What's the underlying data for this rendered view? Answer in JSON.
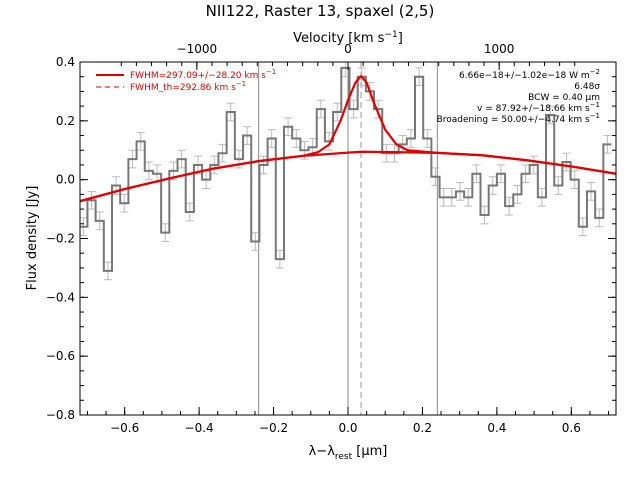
{
  "chart_data": {
    "type": "line",
    "title": "NII122, Raster 13, spaxel (2,5)",
    "xlabel": "λ−λ",
    "xlabel_sub": "rest",
    "xlabel_unit": " [μm]",
    "ylabel": "Flux density [Jy]",
    "top_axis_label": "Velocity [km s",
    "top_axis_label_sup": "−1",
    "top_axis_label_end": "]",
    "xlim": [
      -0.72,
      0.72
    ],
    "ylim": [
      -0.8,
      0.4
    ],
    "top_xlim": [
      -1773,
      1773
    ],
    "x_ticks": [
      -0.6,
      -0.4,
      -0.2,
      0.0,
      0.2,
      0.4,
      0.6
    ],
    "x_tick_labels": [
      "−0.6",
      "−0.4",
      "−0.2",
      "0.0",
      "0.2",
      "0.4",
      "0.6"
    ],
    "y_ticks": [
      -0.8,
      -0.6,
      -0.4,
      -0.2,
      0.0,
      0.2,
      0.4
    ],
    "y_tick_labels": [
      "−0.8",
      "−0.6",
      "−0.4",
      "−0.2",
      "0.0",
      "0.2",
      "0.4"
    ],
    "top_ticks": [
      -1000,
      0,
      1000
    ],
    "top_tick_labels": [
      "−1000",
      "0",
      "1000"
    ],
    "vertical_lines": [
      -0.24,
      0.0,
      0.24
    ],
    "dashed_line_x": 0.035,
    "legend": [
      {
        "label": "FWHM=297.09+/−28.20 km s",
        "sup": "−1",
        "style": "solid",
        "color": "#e00000"
      },
      {
        "label": "FWHM_th=292.86 km s",
        "sup": "−1",
        "style": "dashed",
        "color": "#e00000"
      }
    ],
    "annotations": [
      {
        "text": "6.66e−18+/−1.02e−18 W m",
        "sup": "−2"
      },
      {
        "text": "6.48σ",
        "sup": ""
      },
      {
        "text": "BCW = 0.40 μm",
        "sup": ""
      },
      {
        "text": "v = 87.92+/−18.66 km s",
        "sup": "−1"
      },
      {
        "text": "Broadening = 50.00+/−4.74 km s",
        "sup": "−1"
      }
    ],
    "series": [
      {
        "style": "histogram",
        "color": "#777777",
        "x": [
          -0.711,
          -0.689,
          -0.667,
          -0.645,
          -0.623,
          -0.601,
          -0.579,
          -0.557,
          -0.535,
          -0.513,
          -0.491,
          -0.469,
          -0.447,
          -0.425,
          -0.403,
          -0.381,
          -0.359,
          -0.337,
          -0.315,
          -0.293,
          -0.271,
          -0.249,
          -0.227,
          -0.205,
          -0.183,
          -0.161,
          -0.139,
          -0.117,
          -0.095,
          -0.073,
          -0.051,
          -0.029,
          -0.007,
          0.015,
          0.037,
          0.059,
          0.081,
          0.103,
          0.125,
          0.147,
          0.169,
          0.191,
          0.213,
          0.235,
          0.257,
          0.279,
          0.301,
          0.323,
          0.345,
          0.367,
          0.389,
          0.411,
          0.433,
          0.455,
          0.477,
          0.499,
          0.521,
          0.543,
          0.565,
          0.587,
          0.609,
          0.631,
          0.653,
          0.675,
          0.697
        ],
        "y": [
          -0.16,
          -0.07,
          -0.14,
          -0.31,
          -0.02,
          -0.08,
          0.07,
          0.13,
          0.03,
          0.02,
          -0.18,
          0.03,
          0.07,
          -0.11,
          0.05,
          0.0,
          0.05,
          0.09,
          0.23,
          0.07,
          0.15,
          -0.21,
          0.05,
          0.14,
          -0.27,
          0.18,
          0.14,
          0.1,
          0.11,
          0.24,
          0.13,
          0.23,
          0.38,
          0.24,
          0.35,
          0.3,
          0.24,
          0.09,
          0.09,
          0.12,
          0.14,
          0.35,
          0.14,
          0.01,
          -0.06,
          -0.06,
          -0.04,
          -0.06,
          0.02,
          -0.12,
          -0.02,
          0.02,
          -0.09,
          -0.05,
          0.02,
          0.05,
          -0.06,
          0.22,
          -0.02,
          0.06,
          0.0,
          -0.16,
          -0.04,
          -0.13,
          0.12
        ],
        "error": 0.03
      },
      {
        "style": "line",
        "color": "#e00000",
        "x": [
          -0.72,
          -0.6,
          -0.48,
          -0.36,
          -0.24,
          -0.12,
          0.0,
          0.035,
          0.1,
          0.24,
          0.36,
          0.48,
          0.6,
          0.72
        ],
        "y": [
          -0.073,
          -0.032,
          0.004,
          0.038,
          0.063,
          0.081,
          0.092,
          0.095,
          0.094,
          0.091,
          0.083,
          0.066,
          0.045,
          0.02
        ]
      },
      {
        "style": "line",
        "color": "#e00000",
        "x": [
          -0.72,
          -0.6,
          -0.48,
          -0.36,
          -0.24,
          -0.12,
          -0.08,
          -0.05,
          -0.02,
          0.0,
          0.02,
          0.035,
          0.05,
          0.07,
          0.1,
          0.13,
          0.16,
          0.24,
          0.36,
          0.48,
          0.6,
          0.72
        ],
        "y": [
          -0.073,
          -0.032,
          0.004,
          0.038,
          0.063,
          0.081,
          0.094,
          0.12,
          0.2,
          0.27,
          0.33,
          0.352,
          0.33,
          0.26,
          0.17,
          0.12,
          0.1,
          0.091,
          0.083,
          0.066,
          0.045,
          0.02
        ]
      }
    ]
  }
}
